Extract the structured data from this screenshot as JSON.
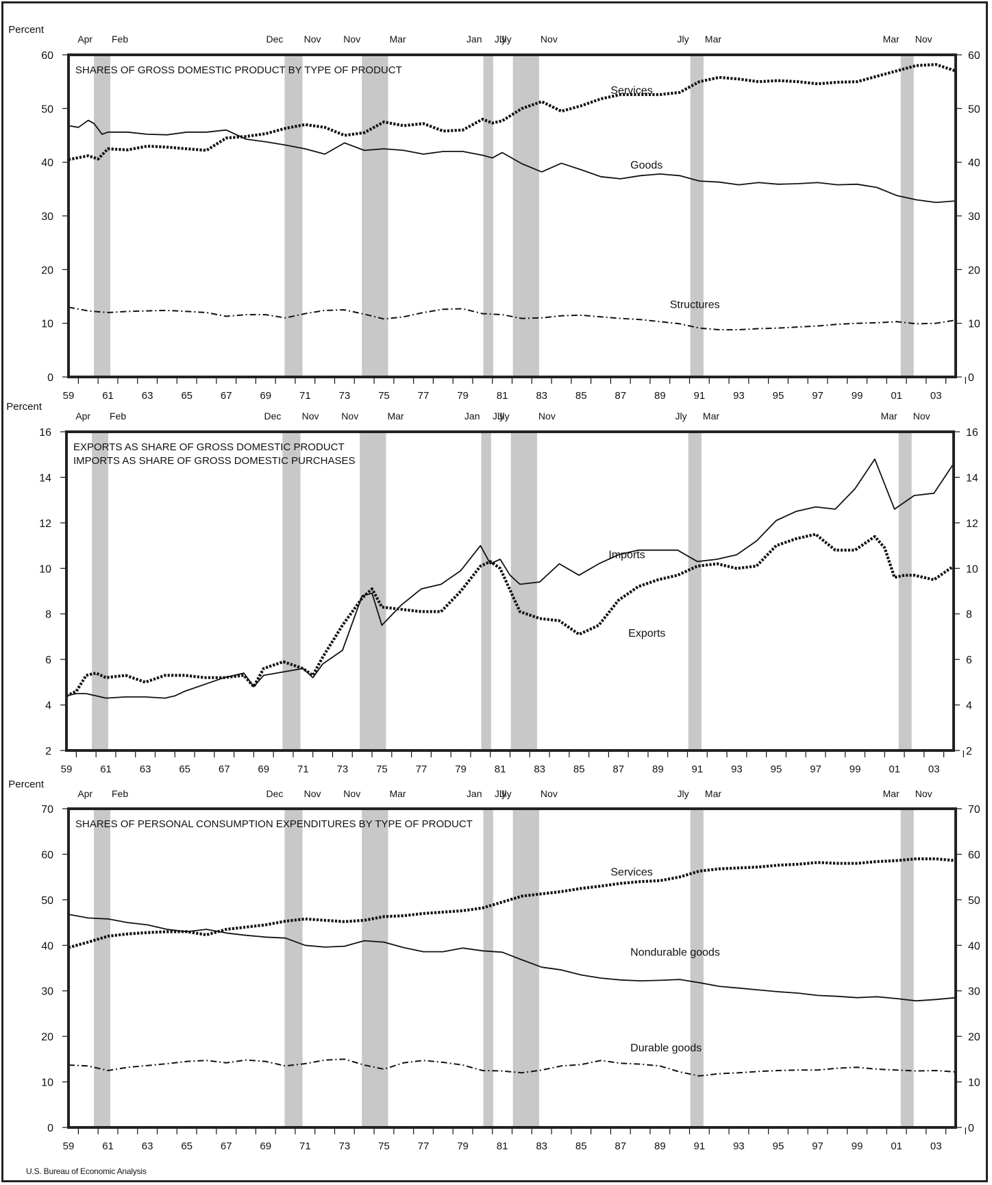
{
  "source_note": "U.S. Bureau of Economic Analysis",
  "unit_label": "Percent",
  "recessions": [
    {
      "peak_label": "Apr",
      "trough_label": "Feb",
      "start": 1960.29,
      "end": 1961.12
    },
    {
      "peak_label": "Dec",
      "trough_label": "Nov",
      "start": 1969.96,
      "end": 1970.87
    },
    {
      "peak_label": "Nov",
      "trough_label": "Mar",
      "start": 1973.88,
      "end": 1975.21
    },
    {
      "peak_label": "Jan",
      "trough_label": "Jly",
      "start": 1980.04,
      "end": 1980.54
    },
    {
      "peak_label": "Jly",
      "trough_label": "Nov",
      "start": 1981.54,
      "end": 1982.87
    },
    {
      "peak_label": "Jly",
      "trough_label": "Mar",
      "start": 1990.54,
      "end": 1991.21
    },
    {
      "peak_label": "Mar",
      "trough_label": "Nov",
      "start": 2001.21,
      "end": 2001.87
    }
  ],
  "x_tick_labels": [
    "59",
    "61",
    "63",
    "65",
    "67",
    "69",
    "71",
    "73",
    "75",
    "77",
    "79",
    "81",
    "83",
    "85",
    "87",
    "89",
    "91",
    "93",
    "95",
    "97",
    "99",
    "01",
    "03"
  ],
  "colors": {
    "line": "#111111",
    "recession_band": "#c8c8c8",
    "frame": "#222222"
  },
  "chart_data": [
    {
      "type": "line",
      "title": "SHARES OF GROSS DOMESTIC PRODUCT BY TYPE OF PRODUCT",
      "ylabel": "Percent",
      "xlim": [
        1959,
        2004
      ],
      "ylim": [
        0,
        60
      ],
      "yticks": [
        0,
        10,
        20,
        30,
        40,
        50,
        60
      ],
      "x_tick_labels": [
        "59",
        "61",
        "63",
        "65",
        "67",
        "69",
        "71",
        "73",
        "75",
        "77",
        "79",
        "81",
        "83",
        "85",
        "87",
        "89",
        "91",
        "93",
        "95",
        "97",
        "99",
        "01",
        "03"
      ],
      "series": [
        {
          "name": "Services",
          "style": "dotted",
          "label_at": [
            1986.5,
            52.7
          ],
          "x": [
            1959,
            1960,
            1960.5,
            1961,
            1962,
            1963,
            1964,
            1965,
            1966,
            1967,
            1968,
            1969,
            1970,
            1971,
            1972,
            1973,
            1974,
            1975,
            1976,
            1977,
            1978,
            1979,
            1980,
            1980.5,
            1981,
            1982,
            1983,
            1984,
            1985,
            1986,
            1987,
            1988,
            1989,
            1990,
            1991,
            1992,
            1993,
            1994,
            1995,
            1996,
            1997,
            1998,
            1999,
            2000,
            2001,
            2002,
            2003,
            2004
          ],
          "y": [
            40.5,
            41.2,
            40.6,
            42.5,
            42.3,
            43,
            42.8,
            42.5,
            42.2,
            44.5,
            44.8,
            45.3,
            46.3,
            47,
            46.5,
            45,
            45.5,
            47.5,
            46.8,
            47.2,
            45.8,
            46,
            48,
            47.3,
            47.7,
            50,
            51.3,
            49.5,
            50.5,
            51.8,
            52.6,
            52.6,
            52.6,
            53,
            55,
            55.8,
            55.5,
            55,
            55.2,
            55,
            54.6,
            54.9,
            55,
            56,
            57,
            58,
            58.2,
            57
          ]
        },
        {
          "name": "Goods",
          "style": "solid",
          "label_at": [
            1987.5,
            38.8
          ],
          "x": [
            1959,
            1959.5,
            1960,
            1960.3,
            1960.7,
            1961,
            1962,
            1963,
            1964,
            1965,
            1966,
            1967,
            1968,
            1969,
            1970,
            1971,
            1972,
            1973,
            1974,
            1975,
            1976,
            1977,
            1978,
            1979,
            1980,
            1980.5,
            1981,
            1982,
            1983,
            1984,
            1985,
            1986,
            1987,
            1988,
            1989,
            1990,
            1991,
            1992,
            1993,
            1994,
            1995,
            1996,
            1997,
            1998,
            1999,
            2000,
            2001,
            2002,
            2003,
            2004
          ],
          "y": [
            46.8,
            46.5,
            47.8,
            47.2,
            45.2,
            45.6,
            45.6,
            45.2,
            45.1,
            45.6,
            45.6,
            46,
            44.3,
            43.8,
            43.2,
            42.5,
            41.5,
            43.6,
            42.2,
            42.5,
            42.2,
            41.5,
            42,
            42,
            41.3,
            40.8,
            41.8,
            39.7,
            38.2,
            39.8,
            38.6,
            37.3,
            36.9,
            37.5,
            37.8,
            37.5,
            36.5,
            36.3,
            35.8,
            36.2,
            35.9,
            36,
            36.2,
            35.8,
            35.9,
            35.3,
            33.8,
            33,
            32.5,
            32.8
          ]
        },
        {
          "name": "Structures",
          "style": "dashdot",
          "label_at": [
            1989.5,
            12.8
          ],
          "x": [
            1959,
            1960,
            1961,
            1962,
            1963,
            1964,
            1965,
            1966,
            1967,
            1968,
            1969,
            1970,
            1971,
            1972,
            1973,
            1974,
            1975,
            1976,
            1977,
            1978,
            1979,
            1980,
            1981,
            1982,
            1983,
            1984,
            1985,
            1986,
            1987,
            1988,
            1989,
            1990,
            1991,
            1992,
            1993,
            1994,
            1995,
            1996,
            1997,
            1998,
            1999,
            2000,
            2001,
            2002,
            2003,
            2004
          ],
          "y": [
            13,
            12.3,
            12,
            12.2,
            12.3,
            12.4,
            12.2,
            12,
            11.3,
            11.6,
            11.6,
            11,
            11.8,
            12.4,
            12.5,
            11.7,
            10.8,
            11.2,
            12,
            12.6,
            12.7,
            11.8,
            11.6,
            10.9,
            11,
            11.4,
            11.5,
            11.2,
            10.9,
            10.7,
            10.3,
            9.9,
            9.1,
            8.8,
            8.8,
            9,
            9.1,
            9.3,
            9.5,
            9.8,
            10,
            10.1,
            10.3,
            9.9,
            10,
            10.6
          ]
        }
      ]
    },
    {
      "type": "line",
      "title": "EXPORTS AS SHARE OF GROSS DOMESTIC PRODUCT",
      "subtitle": "IMPORTS AS SHARE OF GROSS DOMESTIC PURCHASES",
      "ylabel": "Percent",
      "xlim": [
        1959,
        2004
      ],
      "ylim": [
        2,
        16
      ],
      "yticks": [
        2,
        4,
        6,
        8,
        10,
        12,
        14,
        16
      ],
      "x_tick_labels": [
        "59",
        "61",
        "63",
        "65",
        "67",
        "69",
        "71",
        "73",
        "75",
        "77",
        "79",
        "81",
        "83",
        "85",
        "87",
        "89",
        "91",
        "93",
        "95",
        "97",
        "99",
        "01",
        "03"
      ],
      "series": [
        {
          "name": "Imports",
          "style": "solid",
          "label_at": [
            1986.5,
            10.45
          ],
          "x": [
            1959,
            1959.5,
            1960,
            1960.5,
            1961,
            1962,
            1963,
            1964,
            1964.5,
            1965,
            1966,
            1967,
            1968,
            1968.5,
            1969,
            1970,
            1971,
            1971.5,
            1972,
            1973,
            1974,
            1974.5,
            1975,
            1976,
            1977,
            1978,
            1979,
            1980,
            1980.5,
            1981,
            1981.5,
            1982,
            1983,
            1984,
            1985,
            1986,
            1987,
            1988,
            1989,
            1990,
            1991,
            1992,
            1993,
            1994,
            1995,
            1996,
            1997,
            1998,
            1999,
            2000,
            2001,
            2002,
            2003,
            2004
          ],
          "y": [
            4.4,
            4.5,
            4.5,
            4.4,
            4.3,
            4.35,
            4.35,
            4.3,
            4.4,
            4.6,
            4.9,
            5.2,
            5.4,
            4.8,
            5.3,
            5.45,
            5.6,
            5.2,
            5.8,
            6.4,
            8.8,
            8.9,
            7.5,
            8.4,
            9.1,
            9.3,
            9.9,
            11,
            10.2,
            10.4,
            9.7,
            9.3,
            9.4,
            10.2,
            9.7,
            10.2,
            10.6,
            10.8,
            10.8,
            10.8,
            10.3,
            10.4,
            10.6,
            11.2,
            12.1,
            12.5,
            12.7,
            12.6,
            13.5,
            14.8,
            12.6,
            13.2,
            13.3,
            14.6
          ]
        },
        {
          "name": "Exports",
          "style": "dotted",
          "label_at": [
            1987.5,
            7.0
          ],
          "x": [
            1959,
            1959.5,
            1960,
            1960.5,
            1961,
            1962,
            1963,
            1964,
            1965,
            1966,
            1967,
            1968,
            1968.5,
            1969,
            1970,
            1971,
            1971.5,
            1972,
            1973,
            1974,
            1974.5,
            1975,
            1976,
            1977,
            1978,
            1979,
            1980,
            1980.5,
            1981,
            1982,
            1983,
            1984,
            1985,
            1986,
            1987,
            1988,
            1989,
            1990,
            1991,
            1992,
            1993,
            1994,
            1995,
            1996,
            1997,
            1998,
            1999,
            2000,
            2000.5,
            2001,
            2001.5,
            2002,
            2003,
            2004
          ],
          "y": [
            4.4,
            4.6,
            5.3,
            5.4,
            5.2,
            5.3,
            5,
            5.3,
            5.3,
            5.2,
            5.2,
            5.3,
            4.8,
            5.6,
            5.9,
            5.6,
            5.3,
            6.1,
            7.5,
            8.7,
            9.1,
            8.3,
            8.2,
            8.1,
            8.1,
            9,
            10.1,
            10.3,
            10,
            8.1,
            7.8,
            7.7,
            7.1,
            7.5,
            8.6,
            9.2,
            9.5,
            9.7,
            10.1,
            10.2,
            10,
            10.1,
            11,
            11.3,
            11.5,
            10.8,
            10.8,
            11.4,
            10.9,
            9.6,
            9.7,
            9.7,
            9.5,
            10.1
          ]
        }
      ]
    },
    {
      "type": "line",
      "title": "SHARES OF PERSONAL CONSUMPTION EXPENDITURES BY TYPE OF PRODUCT",
      "ylabel": "Percent",
      "xlim": [
        1959,
        2004
      ],
      "ylim": [
        0,
        70
      ],
      "yticks": [
        0,
        10,
        20,
        30,
        40,
        50,
        60,
        70
      ],
      "x_tick_labels": [
        "59",
        "61",
        "63",
        "65",
        "67",
        "69",
        "71",
        "73",
        "75",
        "77",
        "79",
        "81",
        "83",
        "85",
        "87",
        "89",
        "91",
        "93",
        "95",
        "97",
        "99",
        "01",
        "03"
      ],
      "series": [
        {
          "name": "Services",
          "style": "dotted",
          "label_at": [
            1986.5,
            55.3
          ],
          "x": [
            1959,
            1960,
            1961,
            1962,
            1963,
            1964,
            1965,
            1966,
            1967,
            1968,
            1969,
            1970,
            1971,
            1972,
            1973,
            1974,
            1975,
            1976,
            1977,
            1978,
            1979,
            1980,
            1981,
            1982,
            1983,
            1984,
            1985,
            1986,
            1987,
            1988,
            1989,
            1990,
            1991,
            1992,
            1993,
            1994,
            1995,
            1996,
            1997,
            1998,
            1999,
            2000,
            2001,
            2002,
            2003,
            2004
          ],
          "y": [
            39.5,
            40.7,
            42,
            42.5,
            42.8,
            43,
            43,
            42.3,
            43.5,
            44,
            44.5,
            45.3,
            45.8,
            45.5,
            45.2,
            45.5,
            46.3,
            46.5,
            47,
            47.3,
            47.6,
            48.2,
            49.5,
            50.8,
            51.3,
            51.8,
            52.5,
            53,
            53.6,
            54,
            54.2,
            55,
            56.3,
            56.8,
            57,
            57.2,
            57.6,
            57.8,
            58.2,
            58,
            58,
            58.4,
            58.6,
            59,
            59,
            58.6
          ]
        },
        {
          "name": "Nondurable goods",
          "style": "solid",
          "label_at": [
            1987.5,
            37.7
          ],
          "x": [
            1959,
            1960,
            1961,
            1962,
            1963,
            1964,
            1965,
            1966,
            1967,
            1968,
            1969,
            1970,
            1971,
            1972,
            1973,
            1974,
            1975,
            1976,
            1977,
            1978,
            1979,
            1980,
            1981,
            1982,
            1983,
            1984,
            1985,
            1986,
            1987,
            1988,
            1989,
            1990,
            1991,
            1992,
            1993,
            1994,
            1995,
            1996,
            1997,
            1998,
            1999,
            2000,
            2001,
            2002,
            2003,
            2004
          ],
          "y": [
            46.8,
            46,
            45.8,
            45,
            44.5,
            43.5,
            43,
            43.5,
            42.7,
            42.2,
            41.8,
            41.6,
            40,
            39.6,
            39.8,
            41,
            40.7,
            39.5,
            38.6,
            38.6,
            39.4,
            38.8,
            38.5,
            36.8,
            35.2,
            34.6,
            33.5,
            32.8,
            32.4,
            32.2,
            32.3,
            32.5,
            31.8,
            31,
            30.6,
            30.2,
            29.8,
            29.5,
            29,
            28.8,
            28.5,
            28.7,
            28.3,
            27.8,
            28.1,
            28.5
          ]
        },
        {
          "name": "Durable goods",
          "style": "dashdot",
          "label_at": [
            1987.5,
            16.7
          ],
          "x": [
            1959,
            1960,
            1961,
            1962,
            1963,
            1964,
            1965,
            1966,
            1967,
            1968,
            1969,
            1970,
            1971,
            1972,
            1973,
            1974,
            1975,
            1976,
            1977,
            1978,
            1979,
            1980,
            1981,
            1982,
            1983,
            1984,
            1985,
            1986,
            1987,
            1988,
            1989,
            1990,
            1991,
            1992,
            1993,
            1994,
            1995,
            1996,
            1997,
            1998,
            1999,
            2000,
            2001,
            2002,
            2003,
            2004
          ],
          "y": [
            13.7,
            13.5,
            12.5,
            13.2,
            13.6,
            14,
            14.5,
            14.7,
            14.2,
            14.8,
            14.5,
            13.5,
            14,
            14.8,
            15,
            13.7,
            12.8,
            14.2,
            14.7,
            14.3,
            13.7,
            12.5,
            12.4,
            12,
            12.6,
            13.5,
            13.8,
            14.7,
            14.1,
            13.9,
            13.5,
            12.2,
            11.3,
            11.8,
            12,
            12.3,
            12.5,
            12.6,
            12.6,
            13,
            13.2,
            12.8,
            12.6,
            12.4,
            12.5,
            12.2
          ]
        }
      ]
    }
  ]
}
